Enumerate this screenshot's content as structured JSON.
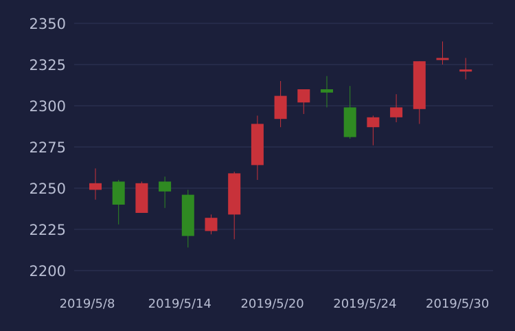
{
  "chart_data": {
    "type": "candlestick",
    "title": "",
    "xlabel": "",
    "ylabel": "",
    "ylim": [
      2200,
      2350
    ],
    "y_ticks": [
      2200,
      2225,
      2250,
      2275,
      2300,
      2325,
      2350
    ],
    "x_tick_labels": [
      "2019/5/8",
      "2019/5/14",
      "2019/5/20",
      "2019/5/24",
      "2019/5/30"
    ],
    "x_tick_index": [
      0,
      4,
      8,
      12,
      16
    ],
    "grid": true,
    "colors": {
      "up": "#c8323a",
      "down": "#2f8a22",
      "background": "#1b1f3a",
      "grid": "#2f3558",
      "text": "#b9bed3"
    },
    "candles": [
      {
        "open": 2249,
        "close": 2253,
        "low": 2243,
        "high": 2262
      },
      {
        "open": 2254,
        "close": 2240,
        "low": 2228,
        "high": 2255
      },
      {
        "open": 2235,
        "close": 2253,
        "low": 2235,
        "high": 2254
      },
      {
        "open": 2254,
        "close": 2248,
        "low": 2238,
        "high": 2257
      },
      {
        "open": 2246,
        "close": 2221,
        "low": 2214,
        "high": 2249
      },
      {
        "open": 2224,
        "close": 2232,
        "low": 2222,
        "high": 2234
      },
      {
        "open": 2234,
        "close": 2259,
        "low": 2219,
        "high": 2260
      },
      {
        "open": 2264,
        "close": 2289,
        "low": 2255,
        "high": 2294
      },
      {
        "open": 2292,
        "close": 2306,
        "low": 2287,
        "high": 2315
      },
      {
        "open": 2302,
        "close": 2310,
        "low": 2295,
        "high": 2310
      },
      {
        "open": 2310,
        "close": 2308,
        "low": 2299,
        "high": 2318
      },
      {
        "open": 2299,
        "close": 2281,
        "low": 2280,
        "high": 2312
      },
      {
        "open": 2287,
        "close": 2293,
        "low": 2276,
        "high": 2294
      },
      {
        "open": 2293,
        "close": 2299,
        "low": 2290,
        "high": 2307
      },
      {
        "open": 2298,
        "close": 2327,
        "low": 2289,
        "high": 2327
      },
      {
        "open": 2328,
        "close": 2329,
        "low": 2325,
        "high": 2339
      },
      {
        "open": 2321,
        "close": 2322,
        "low": 2316,
        "high": 2329
      }
    ]
  }
}
